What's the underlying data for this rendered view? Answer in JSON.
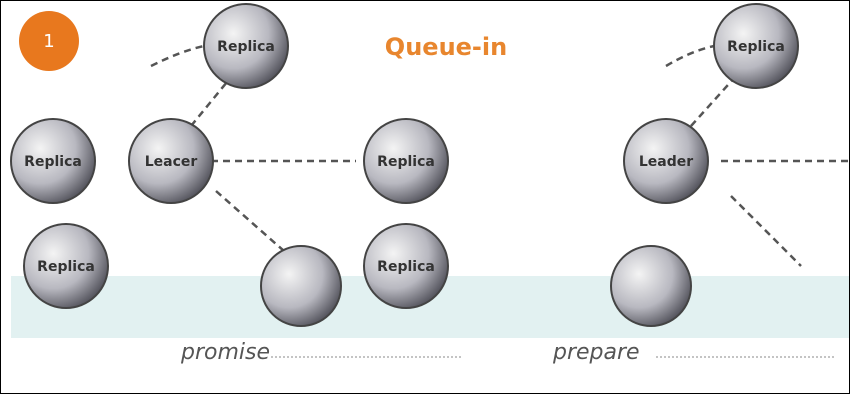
{
  "badge": "1",
  "title": "Queue-in",
  "nodes": [
    {
      "label": "Replica"
    },
    {
      "label": "Replica"
    },
    {
      "label": "Leacer"
    },
    {
      "label": "Replica"
    },
    {
      "label": "Replica"
    },
    {
      "label": "Replica"
    },
    {
      "label": "Replica"
    },
    {
      "label": "Leader"
    }
  ],
  "phases": [
    {
      "label": "promise"
    },
    {
      "label": "prepare"
    }
  ]
}
